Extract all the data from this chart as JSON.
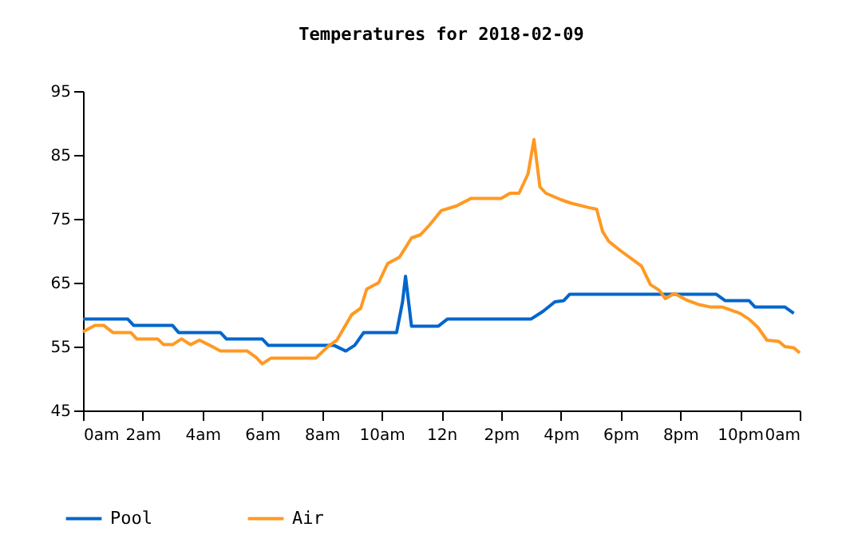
{
  "chart_data": {
    "type": "line",
    "title": "Temperatures for 2018-02-09",
    "xlim": [
      "2018-02-09T00:00",
      "2018-02-10T00:00"
    ],
    "xticks": [
      {
        "value": "2018-02-09T00:00",
        "label": "0am"
      },
      {
        "value": "2018-02-09T02:00",
        "label": "2am"
      },
      {
        "value": "2018-02-09T04:00",
        "label": "4am"
      },
      {
        "value": "2018-02-09T06:00",
        "label": "6am"
      },
      {
        "value": "2018-02-09T08:00",
        "label": "8am"
      },
      {
        "value": "2018-02-09T10:00",
        "label": "10am"
      },
      {
        "value": "2018-02-09T12:00",
        "label": "12n"
      },
      {
        "value": "2018-02-09T14:00",
        "label": "2pm"
      },
      {
        "value": "2018-02-09T16:00",
        "label": "4pm"
      },
      {
        "value": "2018-02-09T18:00",
        "label": "6pm"
      },
      {
        "value": "2018-02-09T20:00",
        "label": "8pm"
      },
      {
        "value": "2018-02-09T22:00",
        "label": "10pm"
      },
      {
        "value": "2018-02-10T00:00",
        "label": "0am"
      }
    ],
    "ylim": [
      45,
      95
    ],
    "yticks": [
      45,
      55,
      65,
      75,
      85,
      95
    ],
    "grid": false,
    "legend": "bottom",
    "line_style": "solid",
    "marker": "none",
    "series": [
      {
        "name": "Pool",
        "color": "#0066cc",
        "x": [
          "2018-02-09T00:00",
          "2018-02-09T01:30",
          "2018-02-09T01:42",
          "2018-02-09T03:00",
          "2018-02-09T03:12",
          "2018-02-09T04:36",
          "2018-02-09T04:48",
          "2018-02-09T06:00",
          "2018-02-09T06:12",
          "2018-02-09T08:24",
          "2018-02-09T08:48",
          "2018-02-09T09:06",
          "2018-02-09T09:24",
          "2018-02-09T10:30",
          "2018-02-09T10:42",
          "2018-02-09T10:48",
          "2018-02-09T11:00",
          "2018-02-09T11:54",
          "2018-02-09T12:12",
          "2018-02-09T15:00",
          "2018-02-09T15:24",
          "2018-02-09T15:48",
          "2018-02-09T16:06",
          "2018-02-09T16:18",
          "2018-02-09T21:12",
          "2018-02-09T21:30",
          "2018-02-09T22:18",
          "2018-02-09T22:30",
          "2018-02-09T23:30",
          "2018-02-09T23:48"
        ],
        "values": [
          59.3,
          59.3,
          58.3,
          58.3,
          57.2,
          57.2,
          56.2,
          56.2,
          55.2,
          55.2,
          54.3,
          55.2,
          57.2,
          57.2,
          62,
          66,
          58.2,
          58.2,
          59.3,
          59.3,
          60.5,
          62,
          62.2,
          63.2,
          63.2,
          62.2,
          62.2,
          61.2,
          61.2,
          60.2
        ]
      },
      {
        "name": "Air",
        "color": "#ff9922",
        "x": [
          "2018-02-09T00:00",
          "2018-02-09T00:24",
          "2018-02-09T00:42",
          "2018-02-09T01:00",
          "2018-02-09T01:36",
          "2018-02-09T01:48",
          "2018-02-09T02:30",
          "2018-02-09T02:42",
          "2018-02-09T03:00",
          "2018-02-09T03:18",
          "2018-02-09T03:36",
          "2018-02-09T03:54",
          "2018-02-09T04:12",
          "2018-02-09T04:36",
          "2018-02-09T05:30",
          "2018-02-09T05:48",
          "2018-02-09T06:00",
          "2018-02-09T06:18",
          "2018-02-09T07:48",
          "2018-02-09T08:12",
          "2018-02-09T08:30",
          "2018-02-09T09:00",
          "2018-02-09T09:18",
          "2018-02-09T09:30",
          "2018-02-09T09:54",
          "2018-02-09T10:12",
          "2018-02-09T10:36",
          "2018-02-09T11:00",
          "2018-02-09T11:18",
          "2018-02-09T11:36",
          "2018-02-09T12:00",
          "2018-02-09T12:30",
          "2018-02-09T13:00",
          "2018-02-09T14:00",
          "2018-02-09T14:18",
          "2018-02-09T14:36",
          "2018-02-09T14:54",
          "2018-02-09T15:06",
          "2018-02-09T15:18",
          "2018-02-09T15:30",
          "2018-02-09T16:00",
          "2018-02-09T16:18",
          "2018-02-09T16:54",
          "2018-02-09T17:12",
          "2018-02-09T17:24",
          "2018-02-09T17:36",
          "2018-02-09T18:00",
          "2018-02-09T18:42",
          "2018-02-09T19:00",
          "2018-02-09T19:18",
          "2018-02-09T19:30",
          "2018-02-09T19:48",
          "2018-02-09T20:12",
          "2018-02-09T20:36",
          "2018-02-09T21:00",
          "2018-02-09T21:24",
          "2018-02-09T22:00",
          "2018-02-09T22:18",
          "2018-02-09T22:36",
          "2018-02-09T22:54",
          "2018-02-09T23:18",
          "2018-02-09T23:30",
          "2018-02-09T23:48",
          "2018-02-10T00:00"
        ],
        "values": [
          57.3,
          58.3,
          58.3,
          57.2,
          57.2,
          56.2,
          56.2,
          55.3,
          55.3,
          56.2,
          55.3,
          56,
          55.3,
          54.3,
          54.3,
          53.3,
          52.3,
          53.2,
          53.2,
          55,
          56,
          60,
          61,
          64,
          65,
          68,
          69,
          72,
          72.5,
          74,
          76.3,
          77,
          78.2,
          78.2,
          79,
          79,
          82,
          87.4,
          80,
          79,
          78,
          77.5,
          76.8,
          76.5,
          73,
          71.5,
          70,
          67.6,
          64.7,
          63.8,
          62.5,
          63.3,
          62.3,
          61.6,
          61.2,
          61.2,
          60.2,
          59.3,
          58,
          56,
          55.8,
          55,
          54.8,
          54
        ]
      }
    ]
  }
}
